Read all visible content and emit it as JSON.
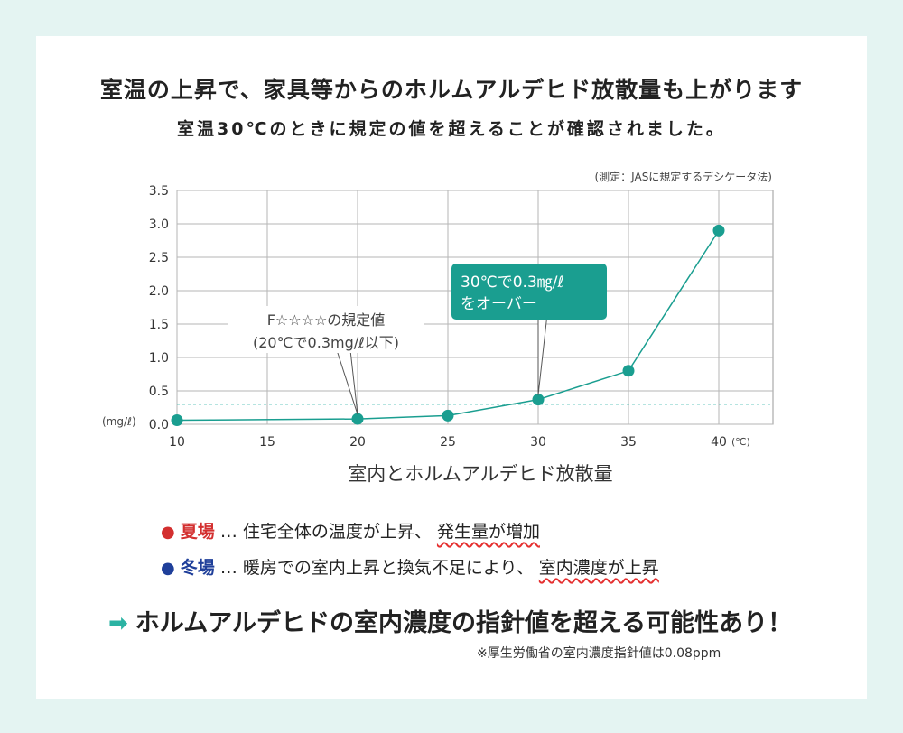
{
  "heading": {
    "title": "室温の上昇で、家具等からのホルムアルデヒド放散量も上がります",
    "subtitle": "室温30℃のときに規定の値を超えることが確認されました。"
  },
  "chart_data": {
    "type": "line",
    "title": "室内とホルムアルデヒド放散量",
    "note": "(測定：JASに規定するデシケータ法)",
    "x": [
      10,
      20,
      25,
      30,
      35,
      40
    ],
    "series": [
      {
        "values": [
          0.06,
          0.08,
          0.13,
          0.37,
          0.8,
          2.9
        ]
      }
    ],
    "xlim": [
      10,
      43
    ],
    "ylim": [
      0,
      3.5
    ],
    "x_ticks": [
      10,
      15,
      20,
      25,
      30,
      35,
      40
    ],
    "x_tick_labels": [
      "10",
      "15",
      "20",
      "25",
      "30",
      "35",
      "40"
    ],
    "y_ticks": [
      0,
      0.5,
      1.0,
      1.5,
      2.0,
      2.5,
      3.0,
      3.5
    ],
    "y_tick_labels": [
      "0.0",
      "0.5",
      "1.0",
      "1.5",
      "2.0",
      "2.5",
      "3.0",
      "3.5"
    ],
    "x_unit": "(℃)",
    "y_unit": "(mg/ℓ)",
    "threshold": 0.3,
    "grid": true,
    "line_color": "#1a9e90",
    "threshold_color": "#3bb9ac",
    "annotations": [
      {
        "text": [
          "F☆☆☆☆の規定値",
          "(20℃で0.3mg/ℓ以下)"
        ],
        "point_x": 20,
        "style": "plain"
      },
      {
        "text": [
          "30℃で0.3㎎/ℓ",
          "をオーバー"
        ],
        "point_x": 30,
        "style": "box"
      }
    ]
  },
  "notes": [
    {
      "dot": "●",
      "dot_color": "#d32f2f",
      "season": "夏場",
      "sep": " … ",
      "text": "住宅全体の温度が上昇、",
      "highlight": "発生量が増加"
    },
    {
      "dot": "●",
      "dot_color": "#1f3f9a",
      "season": "冬場",
      "sep": " … ",
      "text": "暖房での室内上昇と換気不足により、",
      "highlight": "室内濃度が上昇"
    }
  ],
  "conclusion": {
    "arrow": "➡",
    "text": "ホルムアルデヒドの室内濃度の指針値を超える可能性あり！"
  },
  "footnote": "※厚生労働省の室内濃度指針値は0.08ppm"
}
